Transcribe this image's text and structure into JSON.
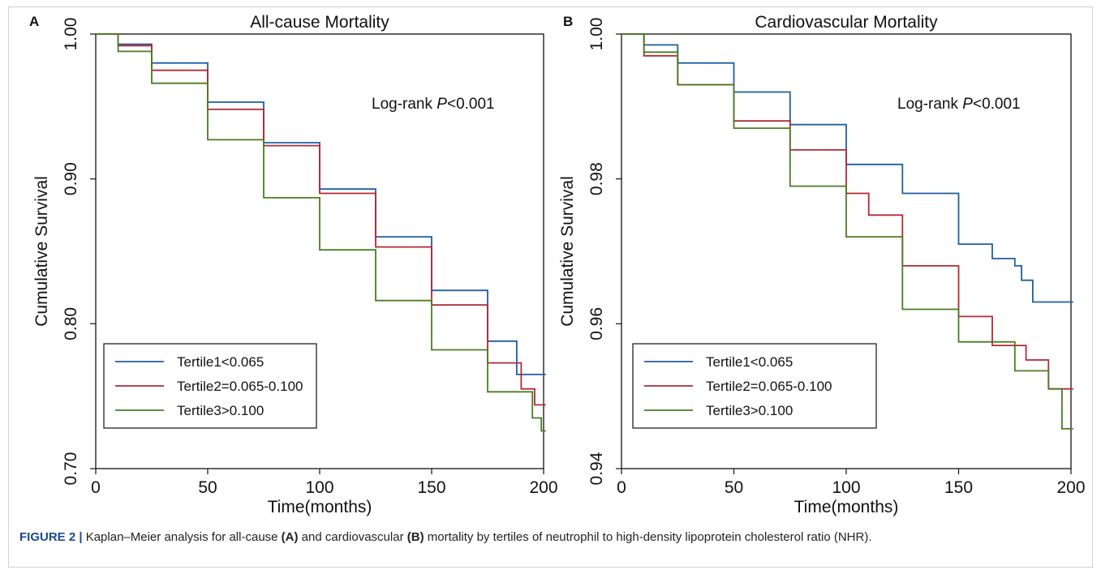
{
  "caption": {
    "label": "FIGURE 2 |",
    "t1": " Kaplan–Meier analysis for all-cause ",
    "b1": "(A)",
    "t2": " and cardiovascular ",
    "b2": "(B)",
    "t3": " mortality by tertiles of neutrophil to high-density lipoprotein cholesterol ratio (NHR)."
  },
  "colors": {
    "tertile1": "#1f5fa0",
    "tertile2": "#b12a35",
    "tertile3": "#4a7d22"
  },
  "chart_data": [
    {
      "panel": "A",
      "type": "line",
      "title": "All-cause Mortality",
      "xlabel": "Time(months)",
      "ylabel": "Cumulative Survival",
      "annotation": {
        "prefix": "Log-rank ",
        "italic": "P",
        "suffix": "<0.001"
      },
      "xlim": [
        0,
        200
      ],
      "ylim": [
        0.7,
        1.0
      ],
      "xticks": [
        0,
        50,
        100,
        150,
        200
      ],
      "xtick_labels": [
        "0",
        "50",
        "100",
        "150",
        "200"
      ],
      "yticks": [
        0.7,
        0.8,
        0.9,
        1.0
      ],
      "ytick_labels": [
        "0.70",
        "0.80",
        "0.90",
        "1.00"
      ],
      "legend_position": "bottom-left",
      "series": [
        {
          "name": "Tertile1<0.065",
          "color": "#1f5fa0",
          "x": [
            0,
            10,
            25,
            50,
            75,
            100,
            125,
            150,
            175,
            188,
            201
          ],
          "y": [
            1.0,
            0.993,
            0.98,
            0.953,
            0.925,
            0.893,
            0.86,
            0.823,
            0.788,
            0.765,
            0.765
          ]
        },
        {
          "name": "Tertile2=0.065-0.100",
          "color": "#b12a35",
          "x": [
            0,
            10,
            25,
            50,
            75,
            100,
            125,
            150,
            175,
            190,
            196,
            201
          ],
          "y": [
            1.0,
            0.992,
            0.975,
            0.948,
            0.923,
            0.89,
            0.853,
            0.813,
            0.773,
            0.755,
            0.744,
            0.744
          ]
        },
        {
          "name": "Tertile3>0.100",
          "color": "#4a7d22",
          "x": [
            0,
            10,
            25,
            50,
            75,
            100,
            125,
            150,
            175,
            195,
            199,
            201
          ],
          "y": [
            1.0,
            0.988,
            0.966,
            0.927,
            0.887,
            0.851,
            0.816,
            0.782,
            0.753,
            0.735,
            0.726,
            0.726
          ]
        }
      ]
    },
    {
      "panel": "B",
      "type": "line",
      "title": "Cardiovascular Mortality",
      "xlabel": "Time(months)",
      "ylabel": "Cumulative Survival",
      "annotation": {
        "prefix": "Log-rank ",
        "italic": "P",
        "suffix": "<0.001"
      },
      "xlim": [
        0,
        200
      ],
      "ylim": [
        0.94,
        1.0
      ],
      "xticks": [
        0,
        50,
        100,
        150,
        200
      ],
      "xtick_labels": [
        "0",
        "50",
        "100",
        "150",
        "200"
      ],
      "yticks": [
        0.94,
        0.96,
        0.98,
        1.0
      ],
      "ytick_labels": [
        "0.94",
        "0.96",
        "0.98",
        "1.00"
      ],
      "legend_position": "bottom-left",
      "series": [
        {
          "name": "Tertile1<0.065",
          "color": "#1f5fa0",
          "x": [
            0,
            10,
            25,
            50,
            75,
            100,
            125,
            150,
            165,
            175,
            178,
            183,
            201
          ],
          "y": [
            1.0,
            0.9985,
            0.996,
            0.992,
            0.9875,
            0.982,
            0.978,
            0.971,
            0.969,
            0.968,
            0.966,
            0.963,
            0.963
          ]
        },
        {
          "name": "Tertile2=0.065-0.100",
          "color": "#b12a35",
          "x": [
            0,
            10,
            25,
            50,
            75,
            100,
            110,
            125,
            150,
            165,
            180,
            190,
            201
          ],
          "y": [
            1.0,
            0.997,
            0.993,
            0.988,
            0.984,
            0.978,
            0.975,
            0.968,
            0.961,
            0.957,
            0.955,
            0.951,
            0.951
          ]
        },
        {
          "name": "Tertile3>0.100",
          "color": "#4a7d22",
          "x": [
            0,
            10,
            25,
            50,
            75,
            100,
            125,
            150,
            175,
            190,
            195,
            196,
            201
          ],
          "y": [
            1.0,
            0.9975,
            0.993,
            0.987,
            0.979,
            0.972,
            0.962,
            0.9575,
            0.9535,
            0.951,
            0.951,
            0.9455,
            0.9455
          ]
        }
      ]
    }
  ]
}
